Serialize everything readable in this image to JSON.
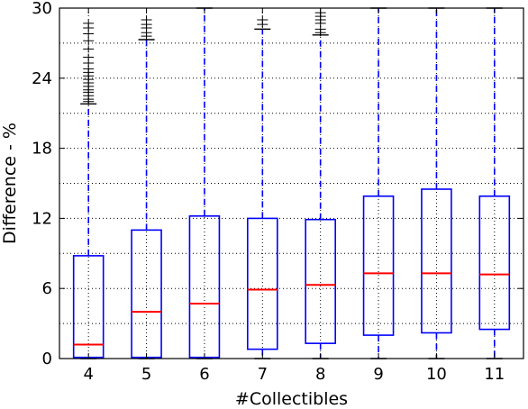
{
  "chart_data": {
    "type": "box",
    "title": "",
    "xlabel": "#Collectibles",
    "ylabel": "Difference - %",
    "ylim": [
      0,
      30
    ],
    "yticks": [
      0,
      6,
      12,
      18,
      24,
      30
    ],
    "grid": true,
    "grid_style": "dotted",
    "colors": {
      "box": "#0000ff",
      "median": "#ff0000",
      "flier": "#000000",
      "grid": "#000000"
    },
    "categories": [
      "4",
      "5",
      "6",
      "7",
      "8",
      "9",
      "10",
      "11"
    ],
    "boxes": [
      {
        "label": "4",
        "min": 0,
        "q1": 0.1,
        "median": 1.2,
        "q3": 8.8,
        "max": 21.8,
        "fliers": [
          22.0,
          22.2,
          22.5,
          22.8,
          23.0,
          23.3,
          23.6,
          23.9,
          24.2,
          24.5,
          24.8,
          25.3,
          25.8,
          26.5,
          27.2,
          27.8,
          28.3,
          28.7
        ]
      },
      {
        "label": "5",
        "min": 0,
        "q1": 0.1,
        "median": 4.0,
        "q3": 11.0,
        "max": 27.3,
        "fliers": [
          27.6,
          27.9,
          28.3,
          28.6,
          29.0
        ]
      },
      {
        "label": "6",
        "min": 0,
        "q1": 0.1,
        "median": 4.7,
        "q3": 12.2,
        "max": 30.0,
        "fliers": []
      },
      {
        "label": "7",
        "min": 0,
        "q1": 0.8,
        "median": 5.9,
        "q3": 12.0,
        "max": 28.2,
        "fliers": [
          28.6,
          29.0
        ]
      },
      {
        "label": "8",
        "min": 0,
        "q1": 1.3,
        "median": 6.3,
        "q3": 11.9,
        "max": 27.7,
        "fliers": [
          27.9,
          28.2,
          28.7,
          29.0,
          29.3,
          29.6
        ]
      },
      {
        "label": "9",
        "min": 0,
        "q1": 2.0,
        "median": 7.3,
        "q3": 13.9,
        "max": 30.0,
        "fliers": []
      },
      {
        "label": "10",
        "min": 0,
        "q1": 2.2,
        "median": 7.3,
        "q3": 14.5,
        "max": 30.0,
        "fliers": []
      },
      {
        "label": "11",
        "min": 0,
        "q1": 2.5,
        "median": 7.2,
        "q3": 13.9,
        "max": 30.0,
        "fliers": []
      }
    ]
  }
}
